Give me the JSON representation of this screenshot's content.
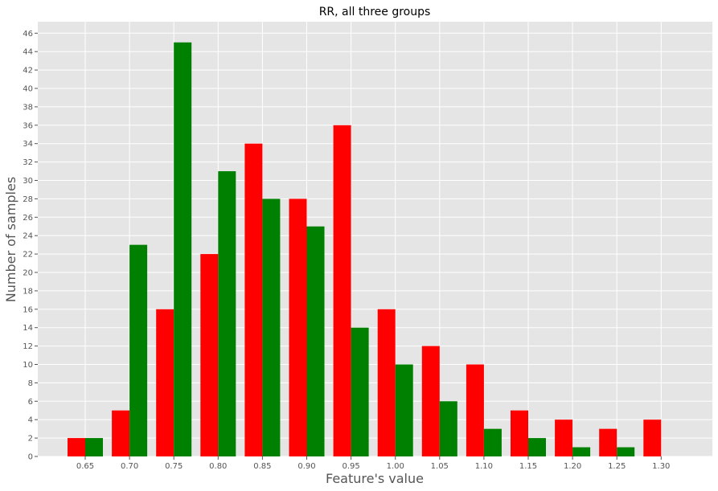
{
  "chart_data": {
    "type": "bar",
    "title": "RR, all three groups",
    "xlabel": "Feature's value",
    "ylabel": "Number of samples",
    "categories": [
      "0.65",
      "0.70",
      "0.75",
      "0.80",
      "0.85",
      "0.90",
      "0.95",
      "1.00",
      "1.05",
      "1.10",
      "1.15",
      "1.20",
      "1.25",
      "1.30"
    ],
    "series": [
      {
        "color": "#ff0000",
        "values": [
          2,
          5,
          16,
          22,
          34,
          28,
          36,
          16,
          12,
          10,
          5,
          4,
          3,
          4
        ]
      },
      {
        "color": "#008000",
        "values": [
          2,
          23,
          45,
          31,
          28,
          25,
          14,
          10,
          6,
          3,
          2,
          1,
          1,
          0
        ]
      }
    ],
    "yticks": [
      0,
      2,
      4,
      6,
      8,
      10,
      12,
      14,
      16,
      18,
      20,
      22,
      24,
      26,
      28,
      30,
      32,
      34,
      36,
      38,
      40,
      42,
      44,
      46
    ],
    "ylim": [
      0,
      47.25
    ],
    "grid": true,
    "background": "#e5e5e5",
    "grid_color": "#ffffff"
  }
}
